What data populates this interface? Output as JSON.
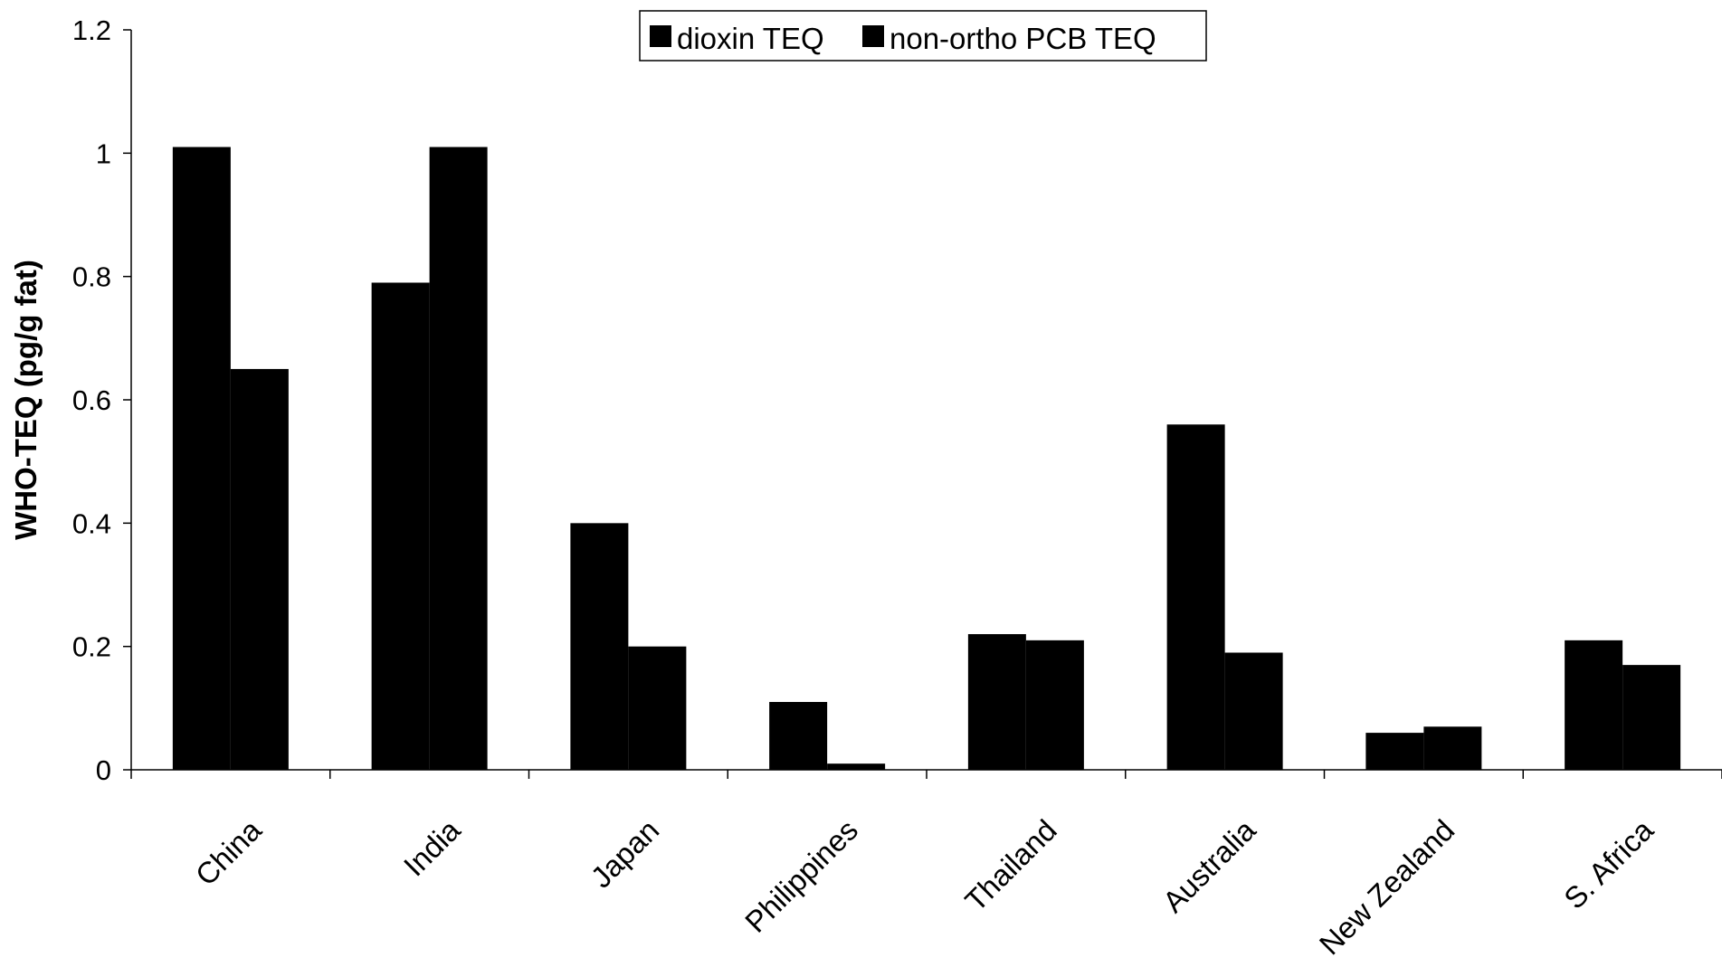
{
  "chart_data": {
    "type": "bar",
    "title": "",
    "xlabel": "",
    "ylabel": "WHO-TEQ (pg/g fat)",
    "ylim": [
      0,
      1.2
    ],
    "yticks": [
      0,
      0.2,
      0.4,
      0.6,
      0.8,
      1,
      1.2
    ],
    "ytick_labels": [
      "0",
      "0.2",
      "0.4",
      "0.6",
      "0.8",
      "1",
      "1.2"
    ],
    "grid": false,
    "legend_position": "top-center",
    "categories": [
      "China",
      "India",
      "Japan",
      "Philippines",
      "Thailand",
      "Australia",
      "New Zealand",
      "S. Africa"
    ],
    "series": [
      {
        "name": "dioxin TEQ",
        "color": "#000000",
        "values": [
          1.01,
          0.79,
          0.4,
          0.11,
          0.22,
          0.56,
          0.06,
          0.21
        ]
      },
      {
        "name": "non-ortho PCB TEQ",
        "color": "#000000",
        "values": [
          0.65,
          1.01,
          0.2,
          0.01,
          0.21,
          0.19,
          0.07,
          0.17
        ]
      }
    ]
  }
}
